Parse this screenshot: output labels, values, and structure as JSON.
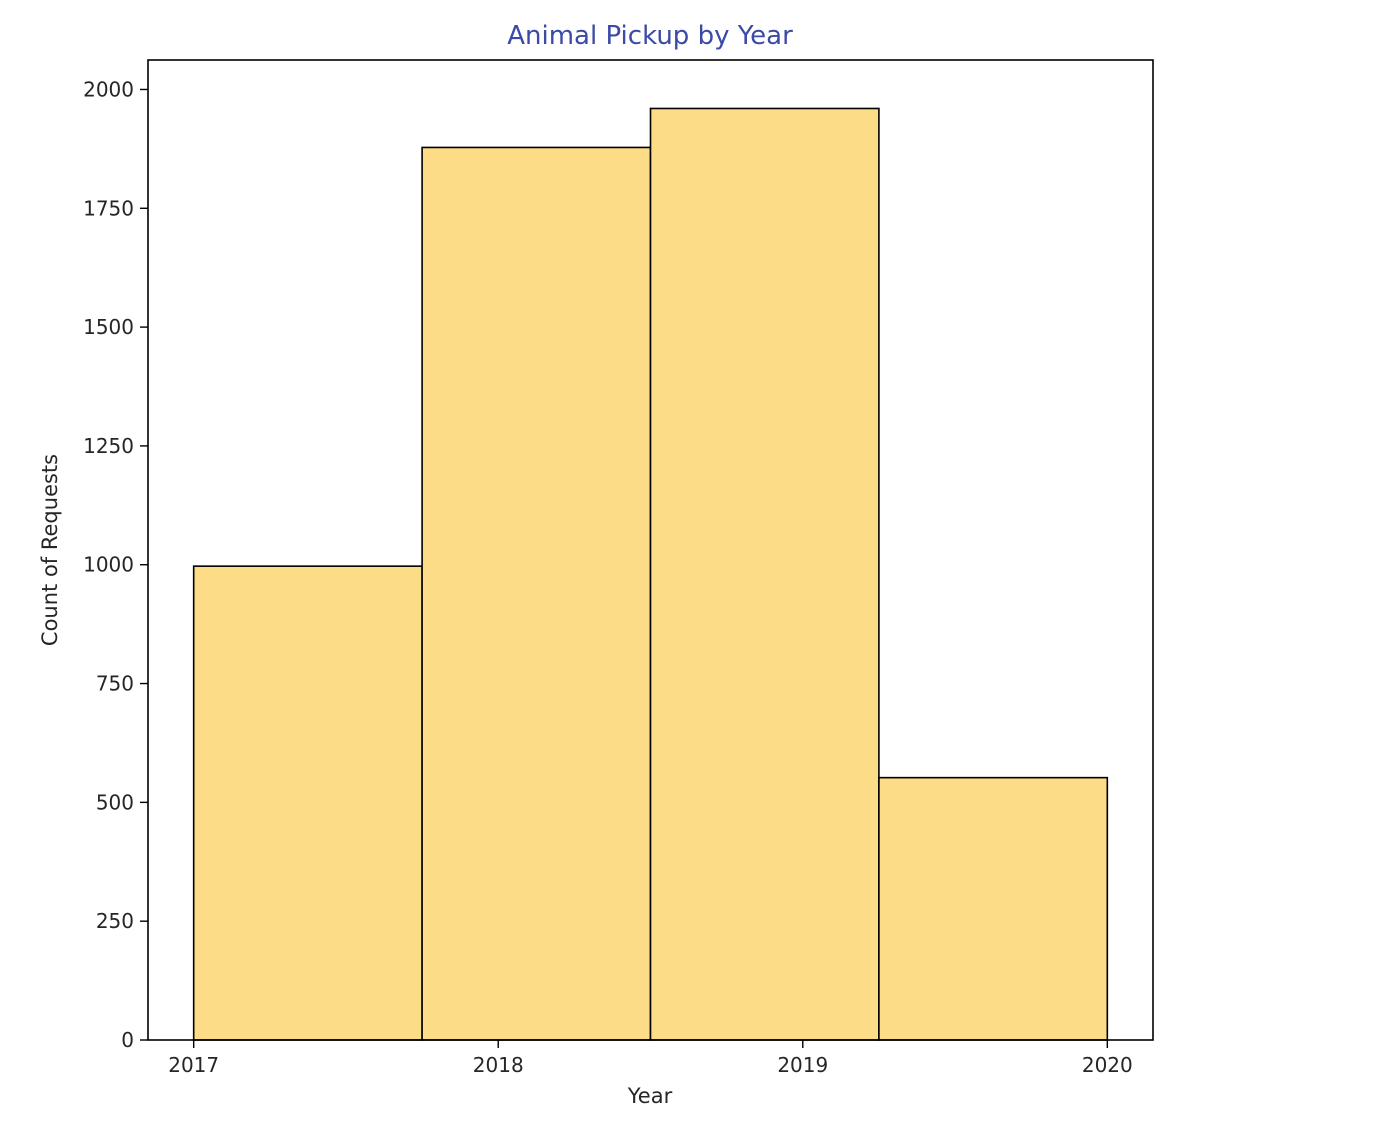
{
  "chart_data": {
    "type": "bar",
    "title": "Animal Pickup by Year",
    "xlabel": "Year",
    "ylabel": "Count of Requests",
    "bins": [
      {
        "start": 2017.0,
        "end": 2017.75,
        "value": 997
      },
      {
        "start": 2017.75,
        "end": 2018.5,
        "value": 1878
      },
      {
        "start": 2018.5,
        "end": 2019.25,
        "value": 1960
      },
      {
        "start": 2019.25,
        "end": 2020.0,
        "value": 552
      }
    ],
    "xlim": [
      2016.85,
      2020.15
    ],
    "ylim": [
      0,
      2062
    ],
    "xticks": [
      2017,
      2018,
      2019,
      2020
    ],
    "xtick_labels": [
      "2017",
      "2018",
      "2019",
      "2020"
    ],
    "yticks": [
      0,
      250,
      500,
      750,
      1000,
      1250,
      1500,
      1750,
      2000
    ],
    "ytick_labels": [
      "0",
      "250",
      "500",
      "750",
      "1000",
      "1250",
      "1500",
      "1750",
      "2000"
    ],
    "grid": false,
    "colors": {
      "bar_fill": "#fddc87",
      "bar_edge": "#000000",
      "title": "#3a4aa6",
      "text": "#262626",
      "axes": "#000000"
    }
  }
}
